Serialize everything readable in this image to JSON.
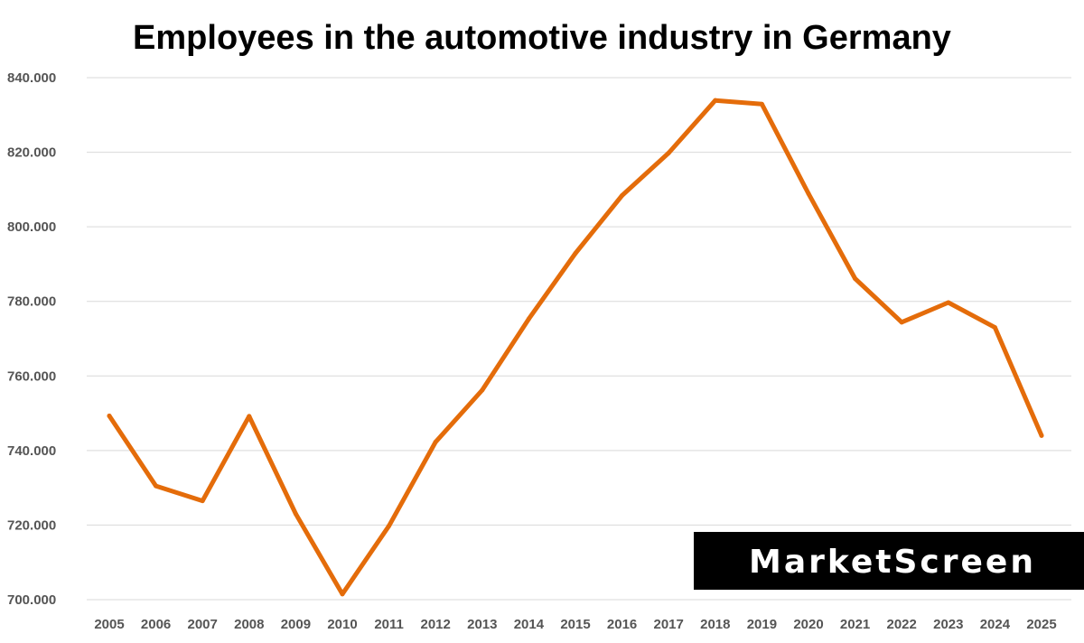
{
  "chart_data": {
    "type": "line",
    "title": "Employees in the automotive industry in Germany",
    "xlabel": "",
    "ylabel": "",
    "categories": [
      "2005",
      "2006",
      "2007",
      "2008",
      "2009",
      "2010",
      "2011",
      "2012",
      "2013",
      "2014",
      "2015",
      "2016",
      "2017",
      "2018",
      "2019",
      "2020",
      "2021",
      "2022",
      "2023",
      "2024",
      "2025"
    ],
    "series": [
      {
        "values": [
          749300,
          730500,
          726500,
          749200,
          723000,
          701500,
          719800,
          742300,
          756200,
          775300,
          792900,
          808400,
          819800,
          833900,
          832900,
          808900,
          786100,
          774400,
          779700,
          773000,
          744000
        ],
        "color": "#E46C0A"
      }
    ],
    "ylim": [
      700000,
      840000
    ],
    "y_ticks": [
      700000,
      720000,
      740000,
      760000,
      780000,
      800000,
      820000,
      840000
    ],
    "y_tick_labels": [
      "700.000",
      "720.000",
      "740.000",
      "760.000",
      "780.000",
      "800.000",
      "820.000",
      "840.000"
    ],
    "grid": "horizontal",
    "legend": "none"
  },
  "watermark": {
    "text": "MarketScreen",
    "background": "#000000",
    "color": "#ffffff"
  }
}
